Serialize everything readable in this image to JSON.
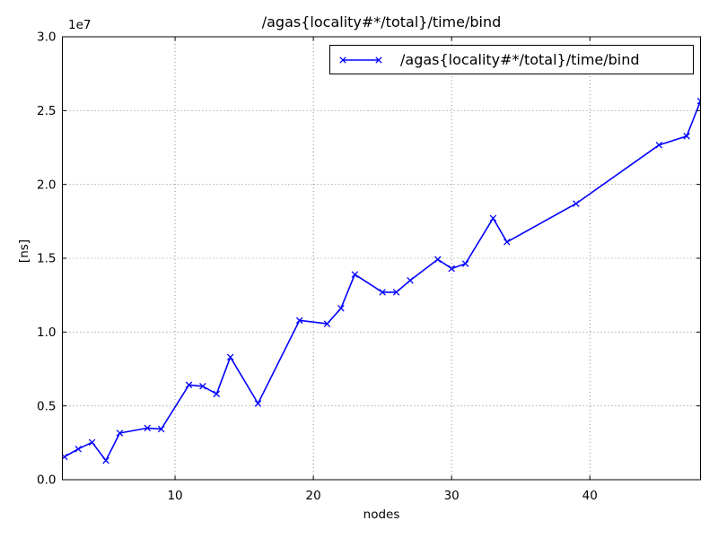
{
  "figure": {
    "background": "#ffffff",
    "frame_color": "#000000"
  },
  "chart_data": {
    "type": "line",
    "title": "/agas{locality#*/total}/time/bind",
    "xlabel": "nodes",
    "ylabel": "[ns]",
    "y_offset_text": "1e7",
    "xlim": [
      1.85,
      48.0
    ],
    "ylim": [
      0,
      30000000
    ],
    "xticks": [
      10,
      20,
      30,
      40
    ],
    "xticklabels": [
      "10",
      "20",
      "30",
      "40"
    ],
    "yticks": [
      0,
      5000000,
      10000000,
      15000000,
      20000000,
      25000000,
      30000000
    ],
    "yticklabels": [
      "0.0",
      "0.5",
      "1.0",
      "1.5",
      "2.0",
      "2.5",
      "3.0"
    ],
    "grid": true,
    "grid_style": "dotted",
    "legend": {
      "position": "upper right",
      "entries": [
        "/agas{locality#*/total}/time/bind"
      ]
    },
    "series": [
      {
        "name": "/agas{locality#*/total}/time/bind",
        "color": "#0000ff",
        "marker": "x",
        "x": [
          2,
          3,
          4,
          5,
          6,
          8,
          9,
          11,
          12,
          13,
          14,
          16,
          19,
          21,
          22,
          23,
          25,
          26,
          27,
          29,
          30,
          31,
          33,
          34,
          39,
          45,
          47,
          48
        ],
        "y": [
          1550000,
          2080000,
          2530000,
          1300000,
          3160000,
          3500000,
          3430000,
          6420000,
          6330000,
          5810000,
          8300000,
          5160000,
          10790000,
          10560000,
          11610000,
          13900000,
          12700000,
          12700000,
          13500000,
          14920000,
          14300000,
          14630000,
          17710000,
          16100000,
          18700000,
          22670000,
          23270000,
          25640000
        ]
      }
    ]
  }
}
